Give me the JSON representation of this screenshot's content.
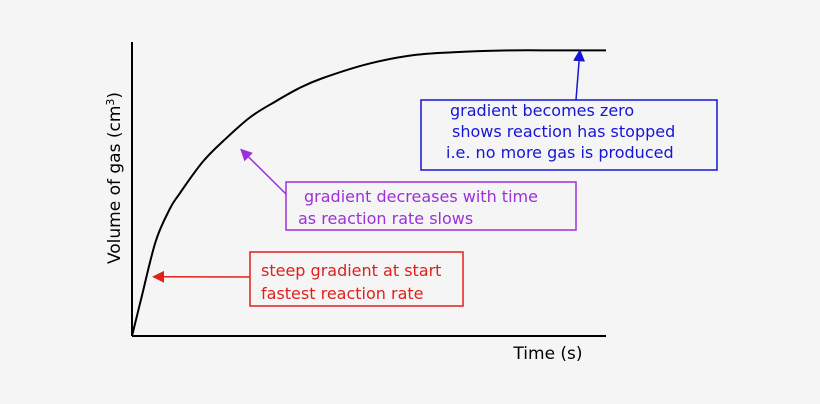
{
  "chart_data": {
    "type": "line",
    "title": "",
    "xlabel": "Time (s)",
    "ylabel_main": "Volume of gas (cm",
    "ylabel_sup": "3",
    "ylabel_close": ")",
    "xlim": [
      0,
      10
    ],
    "ylim": [
      0,
      10
    ],
    "grid": false,
    "series": [
      {
        "x": [
          0,
          0.2,
          0.5,
          0.8,
          1.0,
          1.5,
          2.0,
          2.5,
          3.0,
          3.5,
          4.0,
          5.0,
          6.0,
          7.0,
          8.0,
          9.0,
          10.0
        ],
        "y": [
          0,
          1.3,
          3.2,
          4.3,
          4.8,
          5.9,
          6.7,
          7.4,
          7.9,
          8.35,
          8.7,
          9.2,
          9.5,
          9.6,
          9.65,
          9.65,
          9.65
        ],
        "color": "#000000"
      }
    ],
    "annotations": [
      {
        "id": "steep",
        "lines": [
          "steep gradient at start",
          "fastest reaction rate"
        ],
        "color": "#e0201b",
        "arrow_target": [
          0.45,
          2.0
        ]
      },
      {
        "id": "decreases",
        "lines": [
          "gradient decreases with time",
          "as reaction rate slows"
        ],
        "color": "#9b30d9",
        "arrow_target": [
          2.3,
          6.3
        ]
      },
      {
        "id": "zero",
        "lines": [
          "gradient becomes zero",
          "shows reaction has stopped",
          "i.e. no more gas is produced"
        ],
        "color": "#1515d6",
        "arrow_target": [
          9.45,
          9.65
        ]
      }
    ]
  }
}
